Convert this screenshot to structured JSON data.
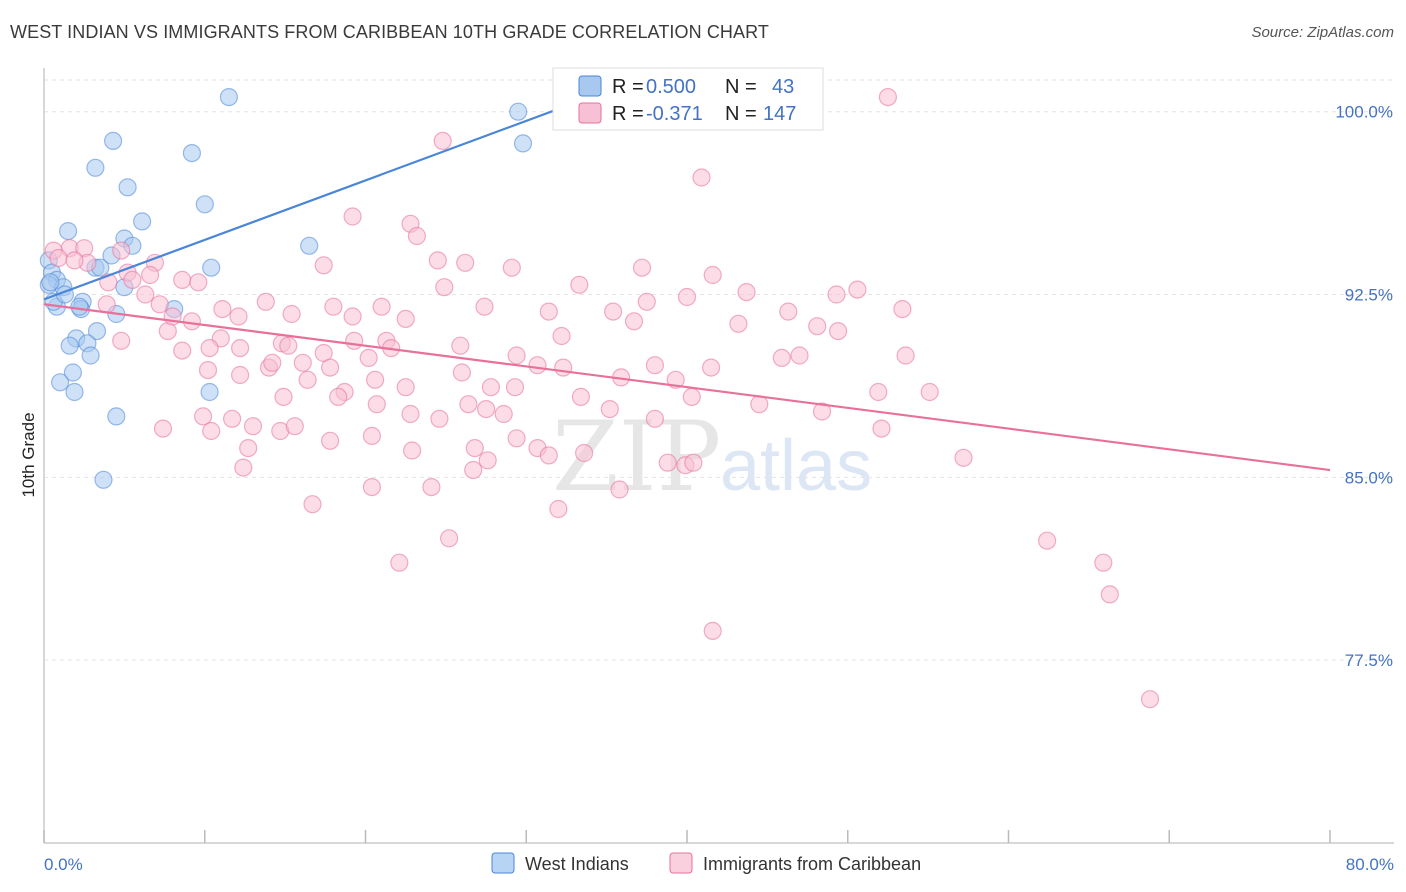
{
  "title": "WEST INDIAN VS IMMIGRANTS FROM CARIBBEAN 10TH GRADE CORRELATION CHART",
  "source": "Source: ZipAtlas.com",
  "watermark": {
    "zip": "ZIP",
    "atlas": "atlas"
  },
  "legend_box": {
    "rows": [
      {
        "r_label": "R =",
        "r_value": "0.500",
        "n_label": "N =",
        "n_value": "43",
        "color": "#a8c8f0",
        "edge": "#4a86d8"
      },
      {
        "r_label": "R =",
        "r_value": "-0.371",
        "n_label": "N =",
        "n_value": "147",
        "color": "#f8c0d4",
        "edge": "#e8709a"
      }
    ]
  },
  "bottom_legend": [
    {
      "label": "West Indians",
      "color": "#b8d4f4",
      "edge": "#4a86d8"
    },
    {
      "label": "Immigrants from Caribbean",
      "color": "#fbd0de",
      "edge": "#e8709a"
    }
  ],
  "chart_data": {
    "type": "scatter",
    "xlabel": "",
    "ylabel": "10th Grade",
    "xlim": [
      0,
      80
    ],
    "ylim": [
      70.0,
      101.3
    ],
    "x_tick_labels": [
      "0.0%",
      "80.0%"
    ],
    "y_ticks": [
      77.5,
      85.0,
      92.5,
      100.0
    ],
    "y_tick_labels": [
      "77.5%",
      "85.0%",
      "92.5%",
      "100.0%"
    ],
    "grid": "horizontal dashed",
    "legend_position": "top-center",
    "series": [
      {
        "name": "West Indians",
        "color": "#4a86d8",
        "fill": "#a8c8f0",
        "trend": {
          "x": [
            0,
            34
          ],
          "y": [
            92.3,
            100.6
          ]
        },
        "points": [
          [
            11.5,
            100.6
          ],
          [
            29.5,
            100.0
          ],
          [
            29.8,
            98.7
          ],
          [
            4.3,
            98.8
          ],
          [
            9.2,
            98.3
          ],
          [
            3.2,
            97.7
          ],
          [
            5.2,
            96.9
          ],
          [
            10.0,
            96.2
          ],
          [
            6.1,
            95.5
          ],
          [
            1.5,
            95.1
          ],
          [
            5.0,
            94.8
          ],
          [
            5.5,
            94.5
          ],
          [
            16.5,
            94.5
          ],
          [
            4.2,
            94.1
          ],
          [
            0.3,
            93.9
          ],
          [
            3.2,
            93.6
          ],
          [
            3.5,
            93.6
          ],
          [
            10.4,
            93.6
          ],
          [
            0.5,
            93.4
          ],
          [
            0.8,
            93.1
          ],
          [
            0.3,
            92.9
          ],
          [
            1.2,
            92.8
          ],
          [
            5.0,
            92.8
          ],
          [
            2.4,
            92.2
          ],
          [
            0.8,
            92.0
          ],
          [
            2.3,
            91.9
          ],
          [
            8.1,
            91.9
          ],
          [
            4.5,
            91.7
          ],
          [
            3.3,
            91.0
          ],
          [
            2.0,
            90.7
          ],
          [
            2.7,
            90.5
          ],
          [
            2.9,
            90.0
          ],
          [
            1.8,
            89.3
          ],
          [
            1.0,
            88.9
          ],
          [
            1.9,
            88.5
          ],
          [
            10.3,
            88.5
          ],
          [
            4.5,
            87.5
          ],
          [
            3.7,
            84.9
          ],
          [
            0.4,
            93.0
          ],
          [
            0.6,
            92.2
          ],
          [
            1.3,
            92.5
          ],
          [
            2.2,
            92.0
          ],
          [
            1.6,
            90.4
          ]
        ]
      },
      {
        "name": "Immigrants from Caribbean",
        "color": "#e8709a",
        "fill": "#f8c0d4",
        "trend": {
          "x": [
            0,
            80
          ],
          "y": [
            92.1,
            85.3
          ]
        },
        "points": [
          [
            52.5,
            100.6
          ],
          [
            24.8,
            98.8
          ],
          [
            40.9,
            97.3
          ],
          [
            19.2,
            95.7
          ],
          [
            22.8,
            95.4
          ],
          [
            23.2,
            94.9
          ],
          [
            1.6,
            94.4
          ],
          [
            0.6,
            94.3
          ],
          [
            2.5,
            94.4
          ],
          [
            4.8,
            94.3
          ],
          [
            0.9,
            94.0
          ],
          [
            2.7,
            93.8
          ],
          [
            1.9,
            93.9
          ],
          [
            6.9,
            93.8
          ],
          [
            17.4,
            93.7
          ],
          [
            24.5,
            93.9
          ],
          [
            26.2,
            93.8
          ],
          [
            29.1,
            93.6
          ],
          [
            37.2,
            93.6
          ],
          [
            41.6,
            93.3
          ],
          [
            5.2,
            93.4
          ],
          [
            6.6,
            93.3
          ],
          [
            8.6,
            93.1
          ],
          [
            9.6,
            93.0
          ],
          [
            24.9,
            92.8
          ],
          [
            33.3,
            92.9
          ],
          [
            43.7,
            92.6
          ],
          [
            49.3,
            92.5
          ],
          [
            50.6,
            92.7
          ],
          [
            11.1,
            91.9
          ],
          [
            13.8,
            92.2
          ],
          [
            18.0,
            92.0
          ],
          [
            21.0,
            92.0
          ],
          [
            27.4,
            92.0
          ],
          [
            37.5,
            92.2
          ],
          [
            40.0,
            92.4
          ],
          [
            3.9,
            92.1
          ],
          [
            7.2,
            92.1
          ],
          [
            9.2,
            91.4
          ],
          [
            12.1,
            91.6
          ],
          [
            15.4,
            91.7
          ],
          [
            22.5,
            91.5
          ],
          [
            31.4,
            91.8
          ],
          [
            35.4,
            91.8
          ],
          [
            46.3,
            91.8
          ],
          [
            53.4,
            91.9
          ],
          [
            43.2,
            91.3
          ],
          [
            48.1,
            91.2
          ],
          [
            49.4,
            91.0
          ],
          [
            4.8,
            90.6
          ],
          [
            7.7,
            91.0
          ],
          [
            11.0,
            90.7
          ],
          [
            14.8,
            90.5
          ],
          [
            19.3,
            90.6
          ],
          [
            21.3,
            90.6
          ],
          [
            25.9,
            90.4
          ],
          [
            10.3,
            90.3
          ],
          [
            8.6,
            90.2
          ],
          [
            15.2,
            90.4
          ],
          [
            17.4,
            90.1
          ],
          [
            20.2,
            89.9
          ],
          [
            29.4,
            90.0
          ],
          [
            45.9,
            89.9
          ],
          [
            47.0,
            90.0
          ],
          [
            53.6,
            90.0
          ],
          [
            10.2,
            89.4
          ],
          [
            16.1,
            89.7
          ],
          [
            17.8,
            89.5
          ],
          [
            12.2,
            89.2
          ],
          [
            14.0,
            89.5
          ],
          [
            20.6,
            89.0
          ],
          [
            26.0,
            89.3
          ],
          [
            32.3,
            89.5
          ],
          [
            35.9,
            89.1
          ],
          [
            38.0,
            89.6
          ],
          [
            39.3,
            89.0
          ],
          [
            41.5,
            89.5
          ],
          [
            16.4,
            89.0
          ],
          [
            22.5,
            88.7
          ],
          [
            27.8,
            88.7
          ],
          [
            29.3,
            88.7
          ],
          [
            33.4,
            88.3
          ],
          [
            14.9,
            88.3
          ],
          [
            18.7,
            88.5
          ],
          [
            20.7,
            88.0
          ],
          [
            26.4,
            88.0
          ],
          [
            40.3,
            88.3
          ],
          [
            44.5,
            88.0
          ],
          [
            48.4,
            87.7
          ],
          [
            51.9,
            88.5
          ],
          [
            55.1,
            88.5
          ],
          [
            9.9,
            87.5
          ],
          [
            11.7,
            87.4
          ],
          [
            18.3,
            88.3
          ],
          [
            22.8,
            87.6
          ],
          [
            27.5,
            87.8
          ],
          [
            28.6,
            87.6
          ],
          [
            35.2,
            87.8
          ],
          [
            38.0,
            87.4
          ],
          [
            7.4,
            87.0
          ],
          [
            10.4,
            86.9
          ],
          [
            13.0,
            87.1
          ],
          [
            14.7,
            86.9
          ],
          [
            15.6,
            87.1
          ],
          [
            20.4,
            86.7
          ],
          [
            24.6,
            87.4
          ],
          [
            52.1,
            87.0
          ],
          [
            12.7,
            86.2
          ],
          [
            17.8,
            86.5
          ],
          [
            22.9,
            86.1
          ],
          [
            26.8,
            86.2
          ],
          [
            29.4,
            86.6
          ],
          [
            30.7,
            86.2
          ],
          [
            33.6,
            86.0
          ],
          [
            12.4,
            85.4
          ],
          [
            26.7,
            85.3
          ],
          [
            27.6,
            85.7
          ],
          [
            31.4,
            85.9
          ],
          [
            38.8,
            85.6
          ],
          [
            39.9,
            85.5
          ],
          [
            40.4,
            85.6
          ],
          [
            57.2,
            85.8
          ],
          [
            20.4,
            84.6
          ],
          [
            24.1,
            84.6
          ],
          [
            35.8,
            84.5
          ],
          [
            16.7,
            83.9
          ],
          [
            32.0,
            83.7
          ],
          [
            25.2,
            82.5
          ],
          [
            62.4,
            82.4
          ],
          [
            65.9,
            81.5
          ],
          [
            22.1,
            81.5
          ],
          [
            66.3,
            80.2
          ],
          [
            41.6,
            78.7
          ],
          [
            68.8,
            75.9
          ],
          [
            4.0,
            93.0
          ],
          [
            6.3,
            92.5
          ],
          [
            5.5,
            93.1
          ],
          [
            8.0,
            91.6
          ],
          [
            12.2,
            90.3
          ],
          [
            14.2,
            89.7
          ],
          [
            19.2,
            91.6
          ],
          [
            21.6,
            90.3
          ],
          [
            30.7,
            89.6
          ],
          [
            36.7,
            91.4
          ],
          [
            32.2,
            90.8
          ]
        ]
      }
    ]
  }
}
